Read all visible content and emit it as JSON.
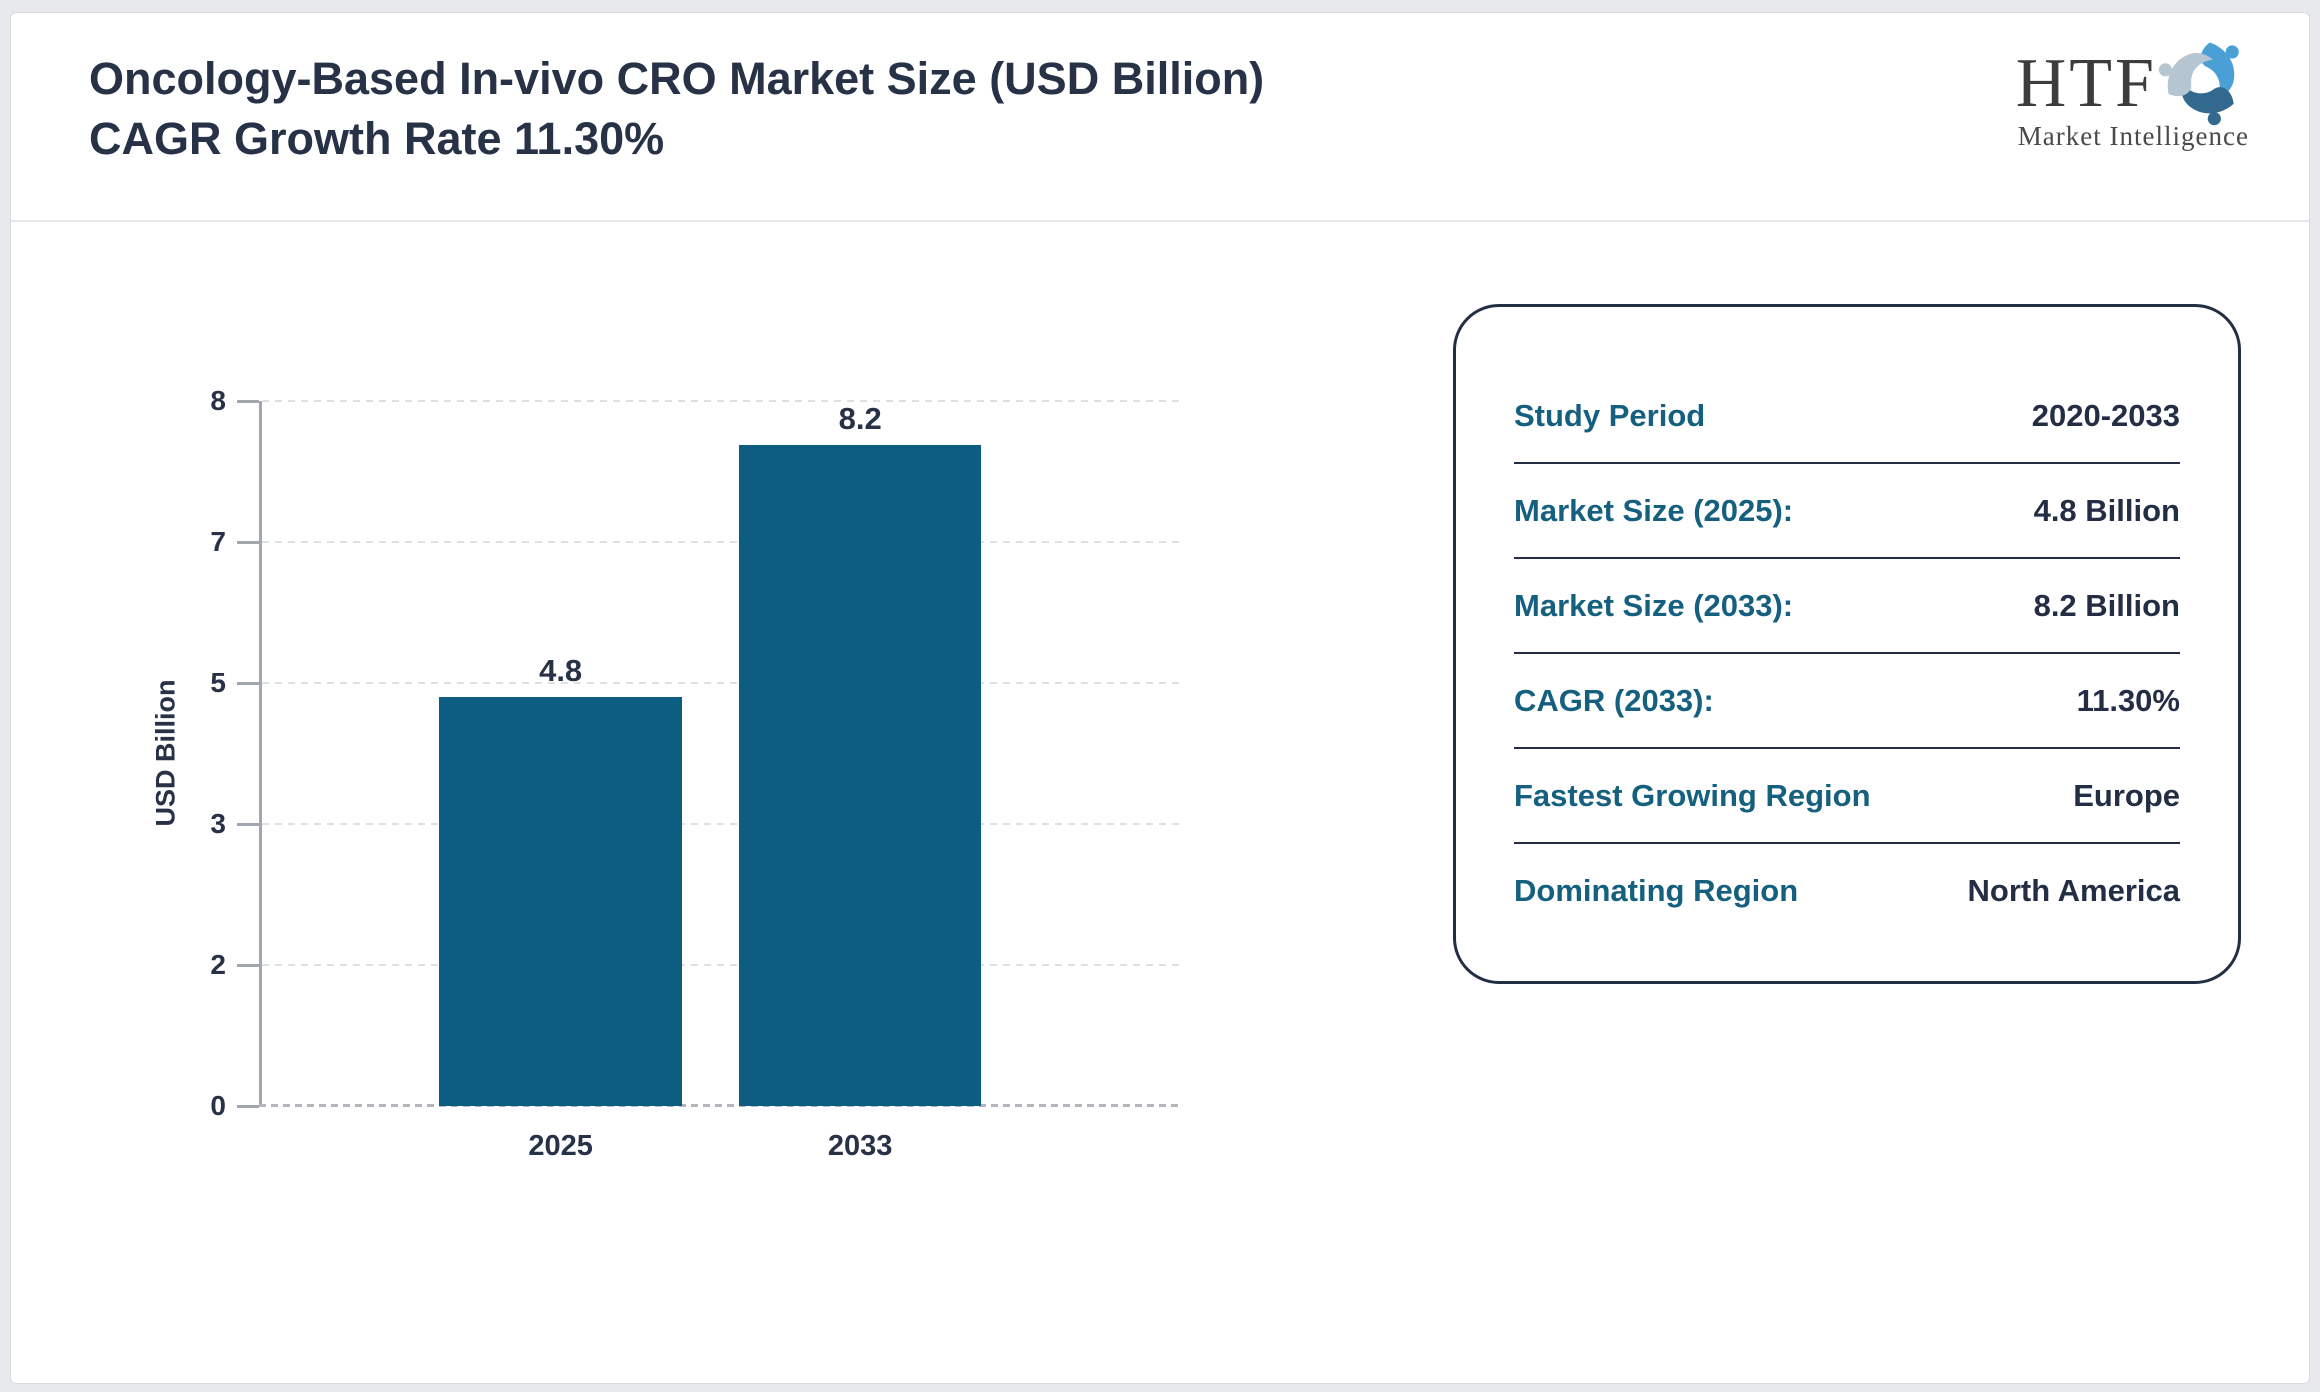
{
  "header": {
    "title": "Oncology-Based In-vivo CRO Market Size (USD Billion) CAGR Growth Rate 11.30%",
    "logo": {
      "name": "HTF",
      "tagline": "Market Intelligence",
      "swirl_colors": [
        "#4aa0d5",
        "#33688f",
        "#b5c5d1"
      ]
    }
  },
  "chart_data": {
    "type": "bar",
    "title": "",
    "categories": [
      "2025",
      "2033"
    ],
    "values": [
      4.8,
      8.2
    ],
    "bar_labels": [
      "4.8",
      "8.2"
    ],
    "xlabel": "",
    "ylabel": "USD Billion",
    "y_ticks": [
      0,
      2,
      3,
      5,
      7,
      8
    ],
    "ylim": [
      0,
      8
    ],
    "grid": "horizontal-dashed",
    "legend": "none",
    "bar_color": "#0d5c81"
  },
  "info_card": {
    "rows": [
      {
        "label": "Study Period",
        "value": "2020-2033"
      },
      {
        "label": "Market Size (2025):",
        "value": "4.8 Billion"
      },
      {
        "label": "Market Size (2033):",
        "value": "8.2 Billion"
      },
      {
        "label": "CAGR (2033):",
        "value": "11.30%"
      },
      {
        "label": "Fastest Growing Region",
        "value": "Europe"
      },
      {
        "label": "Dominating Region",
        "value": "North America"
      }
    ]
  },
  "colors": {
    "bar": "#0d5c81",
    "label_teal": "#16607f",
    "text_dark": "#273247",
    "card_border": "#232e44",
    "page_background": "#e8e9ed"
  }
}
